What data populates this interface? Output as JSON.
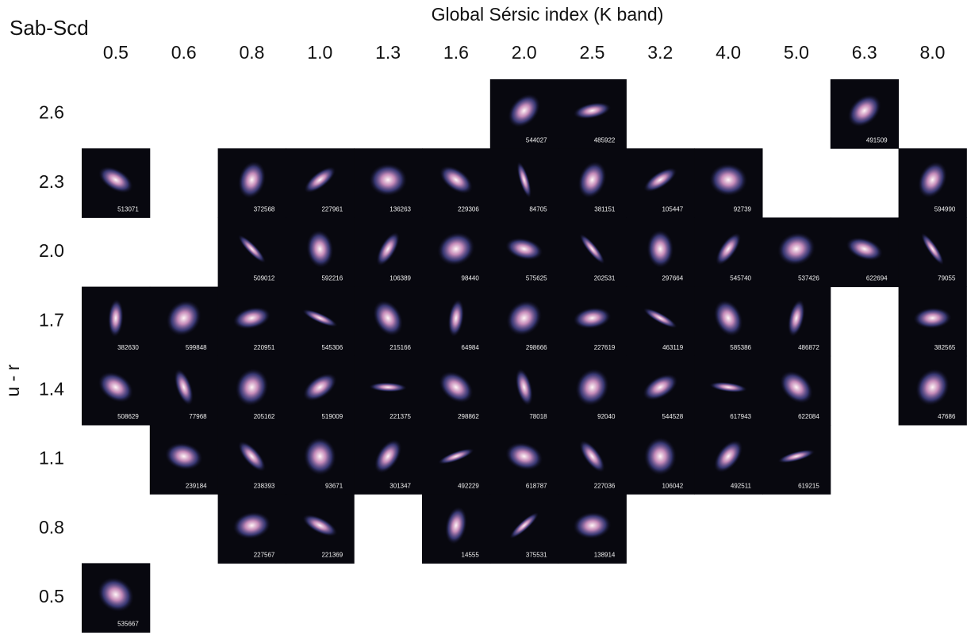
{
  "header": {
    "title": "Sab-Scd",
    "x_label": "Global Sérsic index (K band)",
    "y_label": "u - r"
  },
  "grid": {
    "columns": [
      "0.5",
      "0.6",
      "0.8",
      "1.0",
      "1.3",
      "1.6",
      "2.0",
      "2.5",
      "3.2",
      "4.0",
      "5.0",
      "6.3",
      "8.0"
    ],
    "rows": [
      {
        "label": "2.6",
        "cells": [
          null,
          null,
          null,
          null,
          null,
          null,
          "544027",
          "485922",
          null,
          null,
          null,
          "491509",
          null
        ]
      },
      {
        "label": "2.3",
        "cells": [
          "513071",
          null,
          "372568",
          "227961",
          "136263",
          "229306",
          "84705",
          "381151",
          "105447",
          "92739",
          null,
          null,
          "594990"
        ]
      },
      {
        "label": "2.0",
        "cells": [
          null,
          null,
          "509012",
          "592216",
          "106389",
          "98440",
          "575625",
          "202531",
          "297664",
          "545740",
          "537426",
          "622694",
          "79055"
        ]
      },
      {
        "label": "1.7",
        "cells": [
          "382630",
          "599848",
          "220951",
          "545306",
          "215166",
          "64984",
          "298666",
          "227619",
          "463119",
          "585386",
          "486872",
          null,
          "382565"
        ]
      },
      {
        "label": "1.4",
        "cells": [
          "508629",
          "77968",
          "205162",
          "519009",
          "221375",
          "298862",
          "78018",
          "92040",
          "544528",
          "617943",
          "622084",
          null,
          "47686"
        ]
      },
      {
        "label": "1.1",
        "cells": [
          null,
          "239184",
          "238393",
          "93671",
          "301347",
          "492229",
          "618787",
          "227036",
          "106042",
          "492511",
          "619215",
          null,
          null
        ]
      },
      {
        "label": "0.8",
        "cells": [
          null,
          null,
          "227567",
          "221369",
          null,
          "14555",
          "375531",
          "138914",
          null,
          null,
          null,
          null,
          null
        ]
      },
      {
        "label": "0.5",
        "cells": [
          "535667",
          null,
          null,
          null,
          null,
          null,
          null,
          null,
          null,
          null,
          null,
          null,
          null
        ]
      }
    ]
  }
}
